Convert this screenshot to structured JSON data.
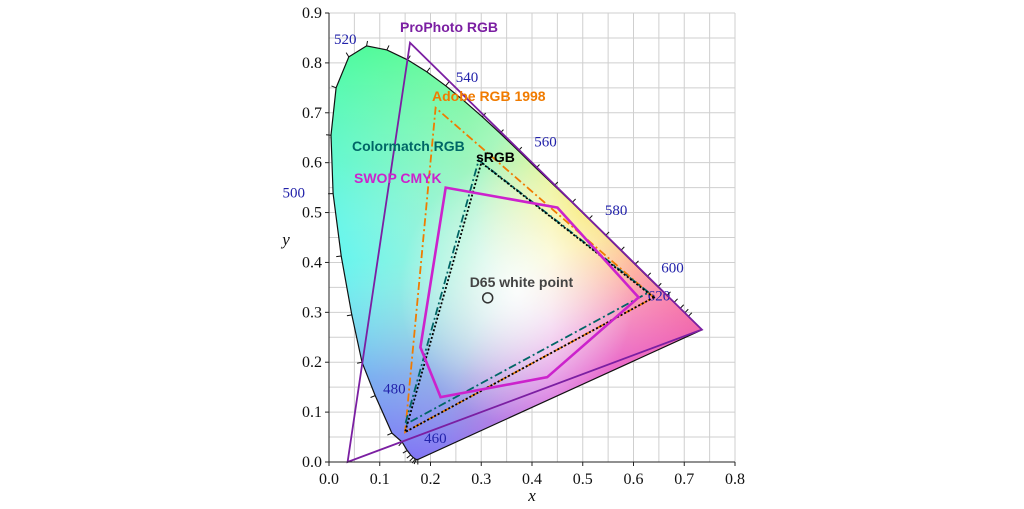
{
  "chart_data": {
    "type": "scatter",
    "title": "",
    "xlabel": "x",
    "ylabel": "y",
    "xlim": [
      0.0,
      0.8
    ],
    "ylim": [
      0.0,
      0.9
    ],
    "grid": true,
    "x_ticks": [
      "0.0",
      "0.1",
      "0.2",
      "0.3",
      "0.4",
      "0.5",
      "0.6",
      "0.7",
      "0.8"
    ],
    "y_ticks": [
      "0.0",
      "0.1",
      "0.2",
      "0.3",
      "0.4",
      "0.5",
      "0.6",
      "0.7",
      "0.8",
      "0.9"
    ],
    "locus": {
      "points": [
        [
          0.175,
          0.005
        ],
        [
          0.172,
          0.005
        ],
        [
          0.17,
          0.006
        ],
        [
          0.166,
          0.009
        ],
        [
          0.161,
          0.014
        ],
        [
          0.154,
          0.023
        ],
        [
          0.144,
          0.04
        ],
        [
          0.124,
          0.058
        ],
        [
          0.091,
          0.133
        ],
        [
          0.065,
          0.2
        ],
        [
          0.045,
          0.295
        ],
        [
          0.024,
          0.413
        ],
        [
          0.008,
          0.538
        ],
        [
          0.004,
          0.655
        ],
        [
          0.014,
          0.75
        ],
        [
          0.039,
          0.812
        ],
        [
          0.074,
          0.834
        ],
        [
          0.114,
          0.826
        ],
        [
          0.155,
          0.806
        ],
        [
          0.193,
          0.782
        ],
        [
          0.23,
          0.754
        ],
        [
          0.266,
          0.724
        ],
        [
          0.302,
          0.692
        ],
        [
          0.337,
          0.659
        ],
        [
          0.373,
          0.624
        ],
        [
          0.408,
          0.589
        ],
        [
          0.444,
          0.554
        ],
        [
          0.479,
          0.52
        ],
        [
          0.512,
          0.487
        ],
        [
          0.545,
          0.454
        ],
        [
          0.575,
          0.424
        ],
        [
          0.603,
          0.396
        ],
        [
          0.627,
          0.372
        ],
        [
          0.648,
          0.351
        ],
        [
          0.666,
          0.334
        ],
        [
          0.68,
          0.32
        ],
        [
          0.692,
          0.308
        ],
        [
          0.701,
          0.299
        ],
        [
          0.708,
          0.292
        ],
        [
          0.735,
          0.265
        ]
      ],
      "wavelength_labels": [
        {
          "label": "460",
          "x": 0.144,
          "y": 0.03
        },
        {
          "label": "480",
          "x": 0.091,
          "y": 0.133
        },
        {
          "label": "500",
          "x": 0.008,
          "y": 0.538
        },
        {
          "label": "520",
          "x": 0.074,
          "y": 0.834
        },
        {
          "label": "540",
          "x": 0.23,
          "y": 0.754
        },
        {
          "label": "560",
          "x": 0.373,
          "y": 0.624
        },
        {
          "label": "580",
          "x": 0.512,
          "y": 0.487
        },
        {
          "label": "600",
          "x": 0.627,
          "y": 0.372
        },
        {
          "label": "620",
          "x": 0.692,
          "y": 0.308
        }
      ]
    },
    "gamuts": [
      {
        "name": "ProPhoto RGB",
        "color": "#7b1fa2",
        "style": "solid",
        "points": [
          [
            0.7347,
            0.2653
          ],
          [
            0.1596,
            0.8404
          ],
          [
            0.0366,
            0.0001
          ]
        ]
      },
      {
        "name": "Adobe RGB 1998",
        "color": "#f07b00",
        "style": "dashdot",
        "points": [
          [
            0.64,
            0.33
          ],
          [
            0.21,
            0.71
          ],
          [
            0.15,
            0.06
          ]
        ]
      },
      {
        "name": "Colormatch RGB",
        "color": "#006666",
        "style": "dashdot",
        "points": [
          [
            0.63,
            0.34
          ],
          [
            0.295,
            0.605
          ],
          [
            0.15,
            0.075
          ]
        ]
      },
      {
        "name": "sRGB",
        "color": "#000000",
        "style": "dotted",
        "points": [
          [
            0.64,
            0.33
          ],
          [
            0.3,
            0.6
          ],
          [
            0.15,
            0.06
          ]
        ]
      },
      {
        "name": "SWOP CMYK",
        "color": "#cc22cc",
        "style": "solid",
        "points": [
          [
            0.23,
            0.55
          ],
          [
            0.45,
            0.51
          ],
          [
            0.61,
            0.33
          ],
          [
            0.43,
            0.17
          ],
          [
            0.22,
            0.13
          ],
          [
            0.18,
            0.23
          ]
        ]
      }
    ],
    "white_point": {
      "label": "D65 white point",
      "x": 0.3127,
      "y": 0.329
    }
  }
}
